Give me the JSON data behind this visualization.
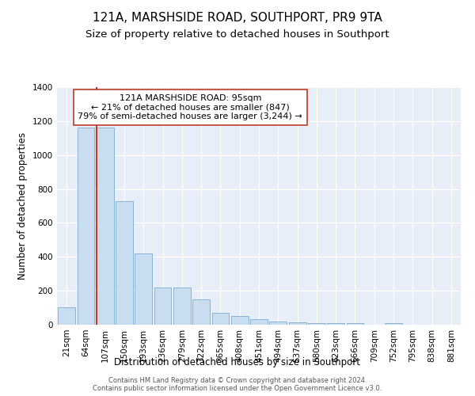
{
  "title": "121A, MARSHSIDE ROAD, SOUTHPORT, PR9 9TA",
  "subtitle": "Size of property relative to detached houses in Southport",
  "xlabel": "Distribution of detached houses by size in Southport",
  "ylabel": "Number of detached properties",
  "categories": [
    "21sqm",
    "64sqm",
    "107sqm",
    "150sqm",
    "193sqm",
    "236sqm",
    "279sqm",
    "322sqm",
    "365sqm",
    "408sqm",
    "451sqm",
    "494sqm",
    "537sqm",
    "580sqm",
    "623sqm",
    "666sqm",
    "709sqm",
    "752sqm",
    "795sqm",
    "838sqm",
    "881sqm"
  ],
  "values": [
    105,
    1160,
    1160,
    730,
    420,
    220,
    220,
    150,
    70,
    50,
    35,
    20,
    15,
    10,
    10,
    10,
    0,
    10,
    0,
    0,
    0
  ],
  "bar_color": "#c8ddf0",
  "bar_edgecolor": "#8ab4d4",
  "vline_x_index": 2,
  "vline_color": "#c0392b",
  "annotation_text": "121A MARSHSIDE ROAD: 95sqm\n← 21% of detached houses are smaller (847)\n79% of semi-detached houses are larger (3,244) →",
  "annotation_box_edgecolor": "#c0392b",
  "ylim": [
    0,
    1400
  ],
  "yticks": [
    0,
    200,
    400,
    600,
    800,
    1000,
    1200,
    1400
  ],
  "background_color": "#e8eef8",
  "footer1": "Contains HM Land Registry data © Crown copyright and database right 2024.",
  "footer2": "Contains public sector information licensed under the Open Government Licence v3.0.",
  "title_fontsize": 11,
  "subtitle_fontsize": 9.5,
  "axis_label_fontsize": 8.5,
  "tick_fontsize": 7.5,
  "annotation_fontsize": 8
}
